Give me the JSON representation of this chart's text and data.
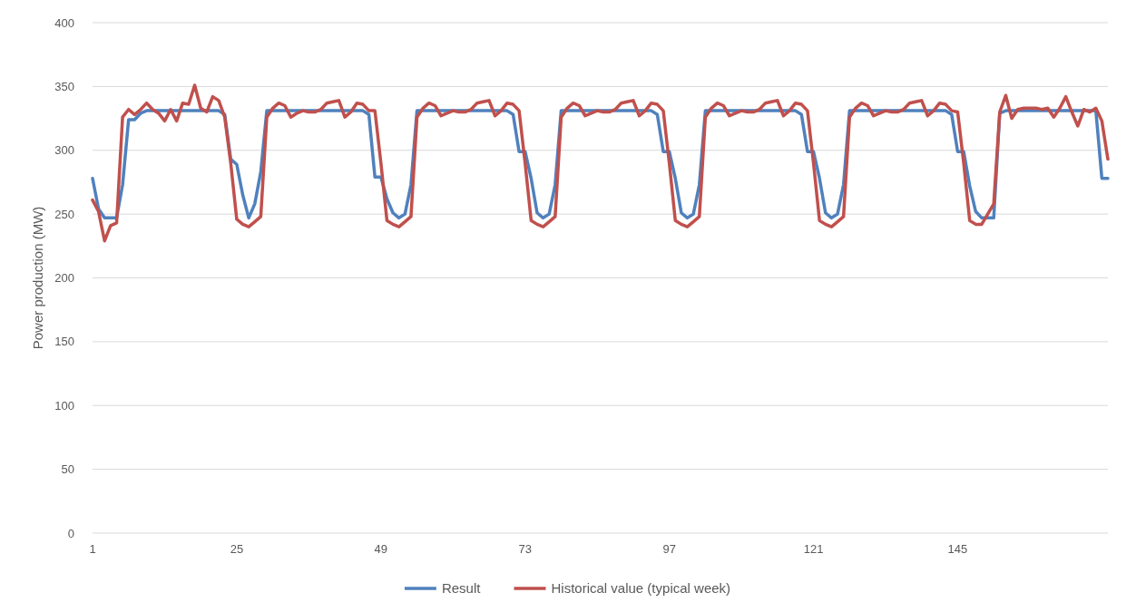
{
  "chart_data": {
    "type": "line",
    "ylabel": "Power production (MW)",
    "x": [
      1,
      2,
      3,
      4,
      5,
      6,
      7,
      8,
      9,
      10,
      11,
      12,
      13,
      14,
      15,
      16,
      17,
      18,
      19,
      20,
      21,
      22,
      23,
      24,
      25,
      26,
      27,
      28,
      29,
      30,
      31,
      32,
      33,
      34,
      35,
      36,
      37,
      38,
      39,
      40,
      41,
      42,
      43,
      44,
      45,
      46,
      47,
      48,
      49,
      50,
      51,
      52,
      53,
      54,
      55,
      56,
      57,
      58,
      59,
      60,
      61,
      62,
      63,
      64,
      65,
      66,
      67,
      68,
      69,
      70,
      71,
      72,
      73,
      74,
      75,
      76,
      77,
      78,
      79,
      80,
      81,
      82,
      83,
      84,
      85,
      86,
      87,
      88,
      89,
      90,
      91,
      92,
      93,
      94,
      95,
      96,
      97,
      98,
      99,
      100,
      101,
      102,
      103,
      104,
      105,
      106,
      107,
      108,
      109,
      110,
      111,
      112,
      113,
      114,
      115,
      116,
      117,
      118,
      119,
      120,
      121,
      122,
      123,
      124,
      125,
      126,
      127,
      128,
      129,
      130,
      131,
      132,
      133,
      134,
      135,
      136,
      137,
      138,
      139,
      140,
      141,
      142,
      143,
      144,
      145,
      146,
      147,
      148,
      149,
      150,
      151,
      152,
      153,
      154,
      155,
      156,
      157,
      158,
      159,
      160,
      161,
      162,
      163,
      164,
      165,
      166,
      167,
      168,
      169,
      170
    ],
    "series": [
      {
        "name": "Result",
        "color": "#4f81bd",
        "values": [
          278,
          254,
          247,
          247,
          247,
          273,
          324,
          324,
          329,
          331,
          331,
          331,
          331,
          331,
          331,
          331,
          331,
          331,
          331,
          331,
          331,
          331,
          328,
          293,
          289,
          265,
          247,
          258,
          283,
          331,
          331,
          331,
          331,
          331,
          331,
          331,
          331,
          331,
          331,
          331,
          331,
          331,
          331,
          331,
          331,
          331,
          328,
          279,
          279,
          262,
          251,
          247,
          250,
          273,
          331,
          331,
          331,
          331,
          331,
          331,
          331,
          331,
          331,
          331,
          331,
          331,
          331,
          331,
          331,
          331,
          328,
          299,
          299,
          278,
          251,
          247,
          250,
          273,
          331,
          331,
          331,
          331,
          331,
          331,
          331,
          331,
          331,
          331,
          331,
          331,
          331,
          331,
          331,
          331,
          328,
          299,
          299,
          278,
          251,
          247,
          250,
          273,
          331,
          331,
          331,
          331,
          331,
          331,
          331,
          331,
          331,
          331,
          331,
          331,
          331,
          331,
          331,
          331,
          328,
          299,
          299,
          278,
          251,
          247,
          250,
          273,
          331,
          331,
          331,
          331,
          331,
          331,
          331,
          331,
          331,
          331,
          331,
          331,
          331,
          331,
          331,
          331,
          331,
          328,
          299,
          299,
          272,
          252,
          247,
          247,
          247,
          329,
          331,
          331,
          331,
          331,
          331,
          331,
          331,
          331,
          331,
          331,
          331,
          331,
          331,
          331,
          331,
          331,
          278,
          278
        ]
      },
      {
        "name": "Historical value (typical week)",
        "color": "#c0504d",
        "values": [
          261,
          252,
          229,
          241,
          243,
          326,
          332,
          328,
          332,
          337,
          332,
          329,
          323,
          332,
          323,
          337,
          336,
          351,
          333,
          330,
          342,
          339,
          326,
          290,
          246,
          242,
          240,
          244,
          248,
          326,
          333,
          337,
          335,
          326,
          329,
          331,
          330,
          330,
          332,
          337,
          338,
          339,
          326,
          330,
          337,
          336,
          331,
          331,
          290,
          245,
          242,
          240,
          244,
          248,
          326,
          333,
          337,
          335,
          327,
          329,
          331,
          330,
          330,
          332,
          337,
          338,
          339,
          327,
          331,
          337,
          336,
          331,
          290,
          245,
          242,
          240,
          244,
          248,
          326,
          333,
          337,
          335,
          327,
          329,
          331,
          330,
          330,
          332,
          337,
          338,
          339,
          327,
          331,
          337,
          336,
          331,
          290,
          245,
          242,
          240,
          244,
          248,
          326,
          333,
          337,
          335,
          327,
          329,
          331,
          330,
          330,
          332,
          337,
          338,
          339,
          327,
          331,
          337,
          336,
          331,
          290,
          245,
          242,
          240,
          244,
          248,
          326,
          333,
          337,
          335,
          327,
          329,
          331,
          330,
          330,
          332,
          337,
          338,
          339,
          327,
          331,
          337,
          336,
          331,
          330,
          290,
          245,
          242,
          242,
          250,
          258,
          330,
          343,
          325,
          332,
          333,
          333,
          333,
          332,
          333,
          326,
          333,
          342,
          330,
          319,
          332,
          330,
          333,
          323,
          293
        ]
      }
    ],
    "xlim": [
      1,
      170
    ],
    "xticks": [
      1,
      25,
      49,
      73,
      97,
      121,
      145
    ],
    "ylim": [
      0,
      400
    ],
    "yticks": [
      0,
      50,
      100,
      150,
      200,
      250,
      300,
      350,
      400
    ],
    "grid": "y",
    "legend": "bottom",
    "marker": "none",
    "line_style": "solid"
  }
}
